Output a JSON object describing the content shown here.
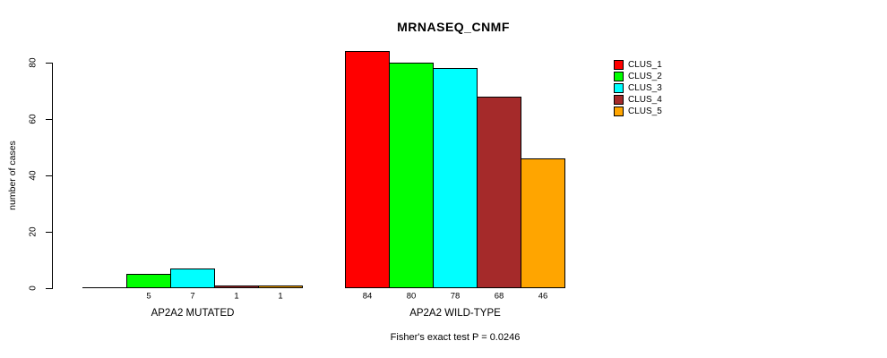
{
  "title": "MRNASEQ_CNMF",
  "footnote": "Fisher's exact test P = 0.0246",
  "chart_data": {
    "type": "bar",
    "title": "MRNASEQ_CNMF",
    "ylabel": "number of cases",
    "xlabel": "",
    "ylim": [
      0,
      80
    ],
    "yticks": [
      0,
      20,
      40,
      60,
      80
    ],
    "grid": false,
    "bar_borders": "black",
    "groups": [
      {
        "label": "AP2A2 MUTATED",
        "values": [
          0,
          5,
          7,
          1,
          1
        ],
        "bar_labels": [
          "",
          "5",
          "7",
          "1",
          "1"
        ]
      },
      {
        "label": "AP2A2 WILD-TYPE",
        "values": [
          84,
          80,
          78,
          68,
          46
        ],
        "bar_labels": [
          "84",
          "80",
          "78",
          "68",
          "46"
        ]
      }
    ],
    "series_colors": [
      "#FF0000",
      "#00FF00",
      "#00FFFF",
      "#A52A2A",
      "#FFA500"
    ],
    "legend": {
      "position": "right",
      "entries": [
        "CLUS_1",
        "CLUS_2",
        "CLUS_3",
        "CLUS_4",
        "CLUS_5"
      ]
    },
    "annotation": "Fisher's exact test P = 0.0246"
  }
}
